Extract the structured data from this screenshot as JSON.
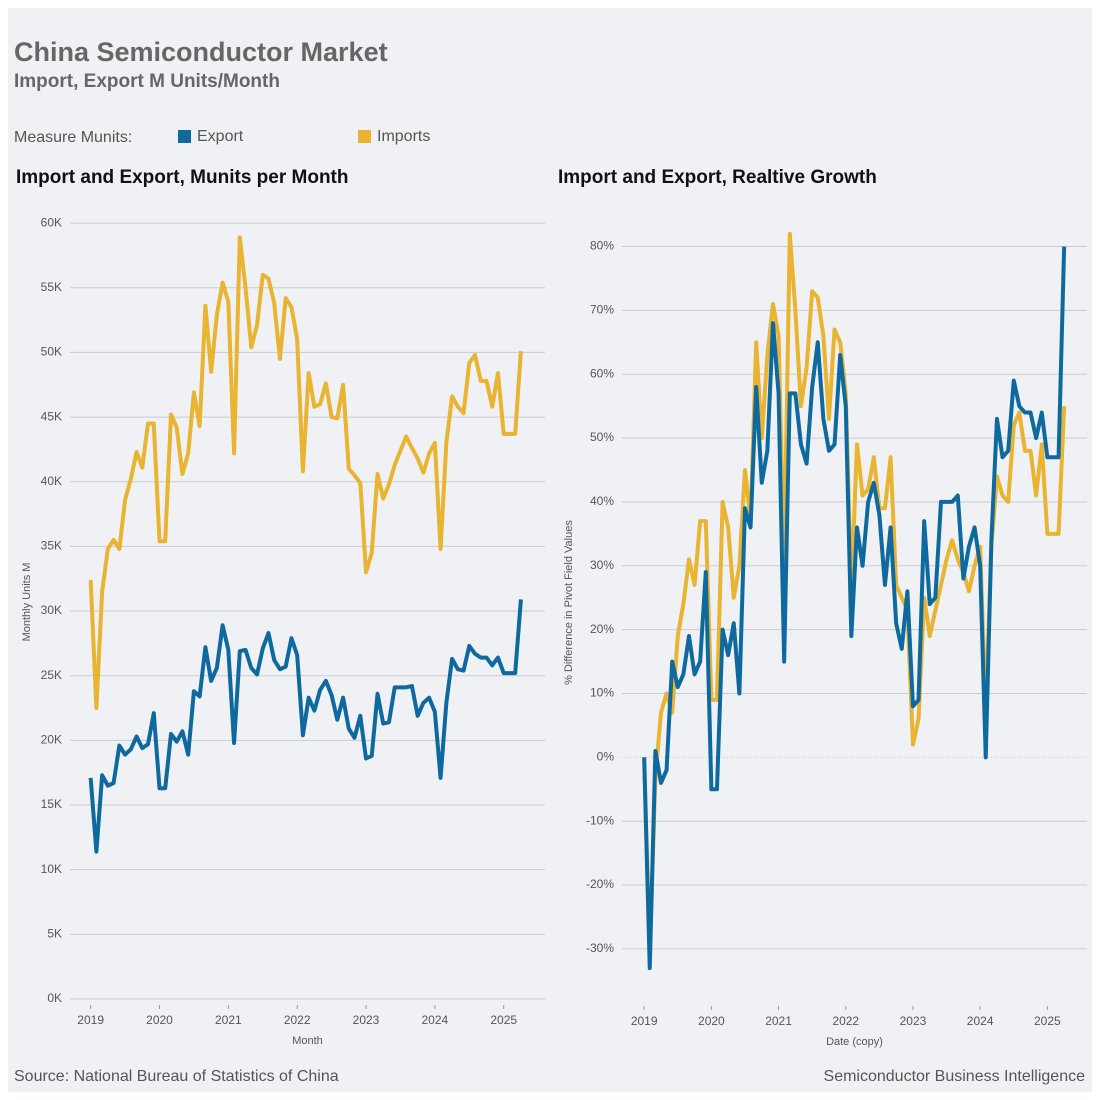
{
  "header": {
    "title": "China Semiconductor Market",
    "subtitle": "Import, Export M Units/Month"
  },
  "legend_title": "Measure Munits:",
  "chart_data": [
    {
      "type": "line",
      "title": "Import and Export, Munits per Month",
      "x_label": "Month",
      "y_label": "Monthly Units M",
      "x": [
        2019,
        2019.083,
        2019.167,
        2019.25,
        2019.333,
        2019.417,
        2019.5,
        2019.583,
        2019.667,
        2019.75,
        2019.833,
        2019.917,
        2020,
        2020.083,
        2020.167,
        2020.25,
        2020.333,
        2020.417,
        2020.5,
        2020.583,
        2020.667,
        2020.75,
        2020.833,
        2020.917,
        2021,
        2021.083,
        2021.167,
        2021.25,
        2021.333,
        2021.417,
        2021.5,
        2021.583,
        2021.667,
        2021.75,
        2021.833,
        2021.917,
        2022,
        2022.083,
        2022.167,
        2022.25,
        2022.333,
        2022.417,
        2022.5,
        2022.583,
        2022.667,
        2022.75,
        2022.833,
        2022.917,
        2023,
        2023.083,
        2023.167,
        2023.25,
        2023.333,
        2023.417,
        2023.5,
        2023.583,
        2023.667,
        2023.75,
        2023.833,
        2023.917,
        2024,
        2024.083,
        2024.167,
        2024.25,
        2024.333,
        2024.417,
        2024.5,
        2024.583,
        2024.667,
        2024.75,
        2024.833,
        2024.917,
        2025,
        2025.083,
        2025.167,
        2025.25
      ],
      "xlim": [
        2018.7,
        2025.6
      ],
      "xticks": [
        2019,
        2020,
        2021,
        2022,
        2023,
        2024,
        2025
      ],
      "ylim": [
        0,
        61.4
      ],
      "yticks": [
        {
          "value": 0,
          "label": "0K"
        },
        {
          "value": 5,
          "label": "5K"
        },
        {
          "value": 10,
          "label": "10K"
        },
        {
          "value": 15,
          "label": "15K"
        },
        {
          "value": 20,
          "label": "20K"
        },
        {
          "value": 25,
          "label": "25K"
        },
        {
          "value": 30,
          "label": "30K"
        },
        {
          "value": 35,
          "label": "35K"
        },
        {
          "value": 40,
          "label": "40K"
        },
        {
          "value": 45,
          "label": "45K"
        },
        {
          "value": 50,
          "label": "50K"
        },
        {
          "value": 55,
          "label": "55K"
        },
        {
          "value": 60,
          "label": "60K"
        }
      ],
      "grid": true,
      "series": [
        {
          "name": "Export",
          "color": "#0e6a9e",
          "values": [
            17.1,
            11.4,
            17.3,
            16.5,
            16.7,
            19.6,
            18.9,
            19.3,
            20.3,
            19.4,
            19.7,
            22.1,
            16.3,
            16.3,
            20.5,
            19.9,
            20.7,
            18.9,
            23.8,
            23.4,
            27.2,
            24.6,
            25.6,
            28.9,
            27,
            19.8,
            26.9,
            27,
            25.6,
            25.1,
            27.1,
            28.3,
            26.2,
            25.5,
            25.7,
            27.9,
            26.6,
            20.4,
            23.3,
            22.3,
            23.9,
            24.6,
            23.5,
            21.6,
            23.3,
            20.9,
            20.2,
            21.9,
            18.6,
            18.8,
            23.6,
            21.3,
            21.4,
            24.1,
            24.1,
            24.1,
            24.2,
            21.9,
            22.9,
            23.3,
            22.2,
            17.1,
            22.9,
            26.3,
            25.5,
            25.4,
            27.3,
            26.7,
            26.4,
            26.4,
            25.8,
            26.4,
            25.2,
            25.2,
            25.2,
            30.9
          ]
        },
        {
          "name": "Imports",
          "color": "#e8b431",
          "values": [
            32.4,
            22.5,
            31.5,
            34.8,
            35.5,
            34.8,
            38.6,
            40.2,
            42.3,
            41.1,
            44.5,
            44.5,
            35.4,
            35.4,
            45.2,
            44.2,
            40.6,
            42.2,
            46.9,
            44.3,
            53.6,
            48.5,
            52.9,
            55.4,
            53.9,
            42.2,
            58.9,
            55,
            50.4,
            52.1,
            56,
            55.7,
            53.8,
            49.5,
            54.2,
            53.5,
            51,
            40.8,
            48.4,
            45.8,
            46,
            47.6,
            45,
            44.9,
            47.5,
            41,
            40.5,
            39.9,
            33,
            34.5,
            40.6,
            38.7,
            39.8,
            41.3,
            42.4,
            43.5,
            42.6,
            41.8,
            40.7,
            42.2,
            43,
            34.8,
            43,
            46.6,
            45.8,
            45.3,
            49.2,
            49.8,
            47.8,
            47.8,
            45.8,
            48.4,
            43.7,
            43.7,
            43.7,
            50.1
          ]
        }
      ]
    },
    {
      "type": "line",
      "title": "Import and Export, Realtive Growth",
      "x_label": "Date (copy)",
      "y_label": "% Difference in Pivot Field Values",
      "x": [
        2019,
        2019.083,
        2019.167,
        2019.25,
        2019.333,
        2019.417,
        2019.5,
        2019.583,
        2019.667,
        2019.75,
        2019.833,
        2019.917,
        2020,
        2020.083,
        2020.167,
        2020.25,
        2020.333,
        2020.417,
        2020.5,
        2020.583,
        2020.667,
        2020.75,
        2020.833,
        2020.917,
        2021,
        2021.083,
        2021.167,
        2021.25,
        2021.333,
        2021.417,
        2021.5,
        2021.583,
        2021.667,
        2021.75,
        2021.833,
        2021.917,
        2022,
        2022.083,
        2022.167,
        2022.25,
        2022.333,
        2022.417,
        2022.5,
        2022.583,
        2022.667,
        2022.75,
        2022.833,
        2022.917,
        2023,
        2023.083,
        2023.167,
        2023.25,
        2023.333,
        2023.417,
        2023.5,
        2023.583,
        2023.667,
        2023.75,
        2023.833,
        2023.917,
        2024,
        2024.083,
        2024.167,
        2024.25,
        2024.333,
        2024.417,
        2024.5,
        2024.583,
        2024.667,
        2024.75,
        2024.833,
        2024.917,
        2025,
        2025.083,
        2025.167,
        2025.25
      ],
      "xlim": [
        2018.67,
        2025.59
      ],
      "xticks": [
        2019,
        2020,
        2021,
        2022,
        2023,
        2024,
        2025
      ],
      "ylim": [
        -38,
        86.5
      ],
      "yticks": [
        {
          "value": -30,
          "label": "-30%"
        },
        {
          "value": -20,
          "label": "-20%"
        },
        {
          "value": -10,
          "label": "-10%"
        },
        {
          "value": 0,
          "label": "0%"
        },
        {
          "value": 10,
          "label": "10%"
        },
        {
          "value": 20,
          "label": "20%"
        },
        {
          "value": 30,
          "label": "30%"
        },
        {
          "value": 40,
          "label": "40%"
        },
        {
          "value": 50,
          "label": "50%"
        },
        {
          "value": 60,
          "label": "60%"
        },
        {
          "value": 70,
          "label": "70%"
        },
        {
          "value": 80,
          "label": "80%"
        }
      ],
      "grid": true,
      "series": [
        {
          "color": "#e8b431",
          "values": [
            0,
            -31,
            -3,
            7,
            10,
            7,
            19,
            24,
            31,
            27,
            37,
            37,
            9,
            9,
            40,
            36,
            25,
            30,
            45,
            37,
            65,
            50,
            63,
            71,
            66,
            30,
            82,
            70,
            55,
            61,
            73,
            72,
            66,
            53,
            67,
            65,
            57,
            26,
            49,
            41,
            42,
            47,
            39,
            39,
            47,
            27,
            25,
            23,
            2,
            6,
            25,
            19,
            23,
            27,
            31,
            34,
            31,
            29,
            26,
            30,
            33,
            7,
            33,
            44,
            41,
            40,
            52,
            54,
            48,
            48,
            41,
            49,
            35,
            35,
            35,
            55
          ]
        },
        {
          "color": "#0e6a9e",
          "values": [
            0,
            -33,
            1,
            -4,
            -2,
            15,
            11,
            13,
            19,
            13,
            15,
            29,
            -5,
            -5,
            20,
            16,
            21,
            10,
            39,
            36,
            58,
            43,
            48,
            68,
            57,
            15,
            57,
            57,
            49,
            46,
            58,
            65,
            53,
            48,
            49,
            63,
            55,
            19,
            36,
            30,
            40,
            43,
            38,
            27,
            36,
            21,
            17,
            26,
            8,
            9,
            37,
            24,
            25,
            40,
            40,
            40,
            41,
            28,
            33,
            36,
            30,
            0,
            34,
            53,
            47,
            48,
            59,
            55,
            54,
            54,
            50,
            54,
            47,
            47,
            47,
            80
          ]
        }
      ]
    }
  ],
  "footer": {
    "source": "Source: National Bureau of Statistics of China",
    "credit": "Semiconductor Business Intelligence"
  }
}
